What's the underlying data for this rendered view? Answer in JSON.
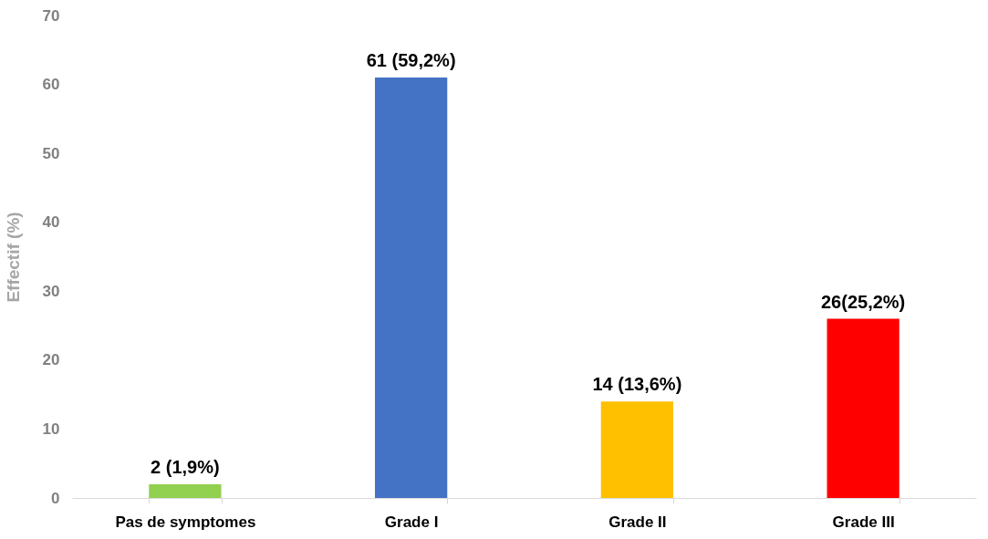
{
  "chart_data": {
    "type": "bar",
    "ylabel": "Effectif (%)",
    "categories": [
      "Pas de symptomes",
      "Grade I",
      "Grade II",
      "Grade III"
    ],
    "values": [
      2,
      61,
      14,
      26
    ],
    "colors": [
      "#92d050",
      "#4472c4",
      "#ffc000",
      "#ff0000"
    ],
    "value_labels": [
      "2 (1,9%)",
      "61 (59,2%)",
      "14 (13,6%)",
      "26(25,2%)"
    ],
    "ylim": [
      0,
      70
    ],
    "yticks": [
      0,
      10,
      20,
      30,
      40,
      50,
      60,
      70
    ],
    "grid": false
  }
}
